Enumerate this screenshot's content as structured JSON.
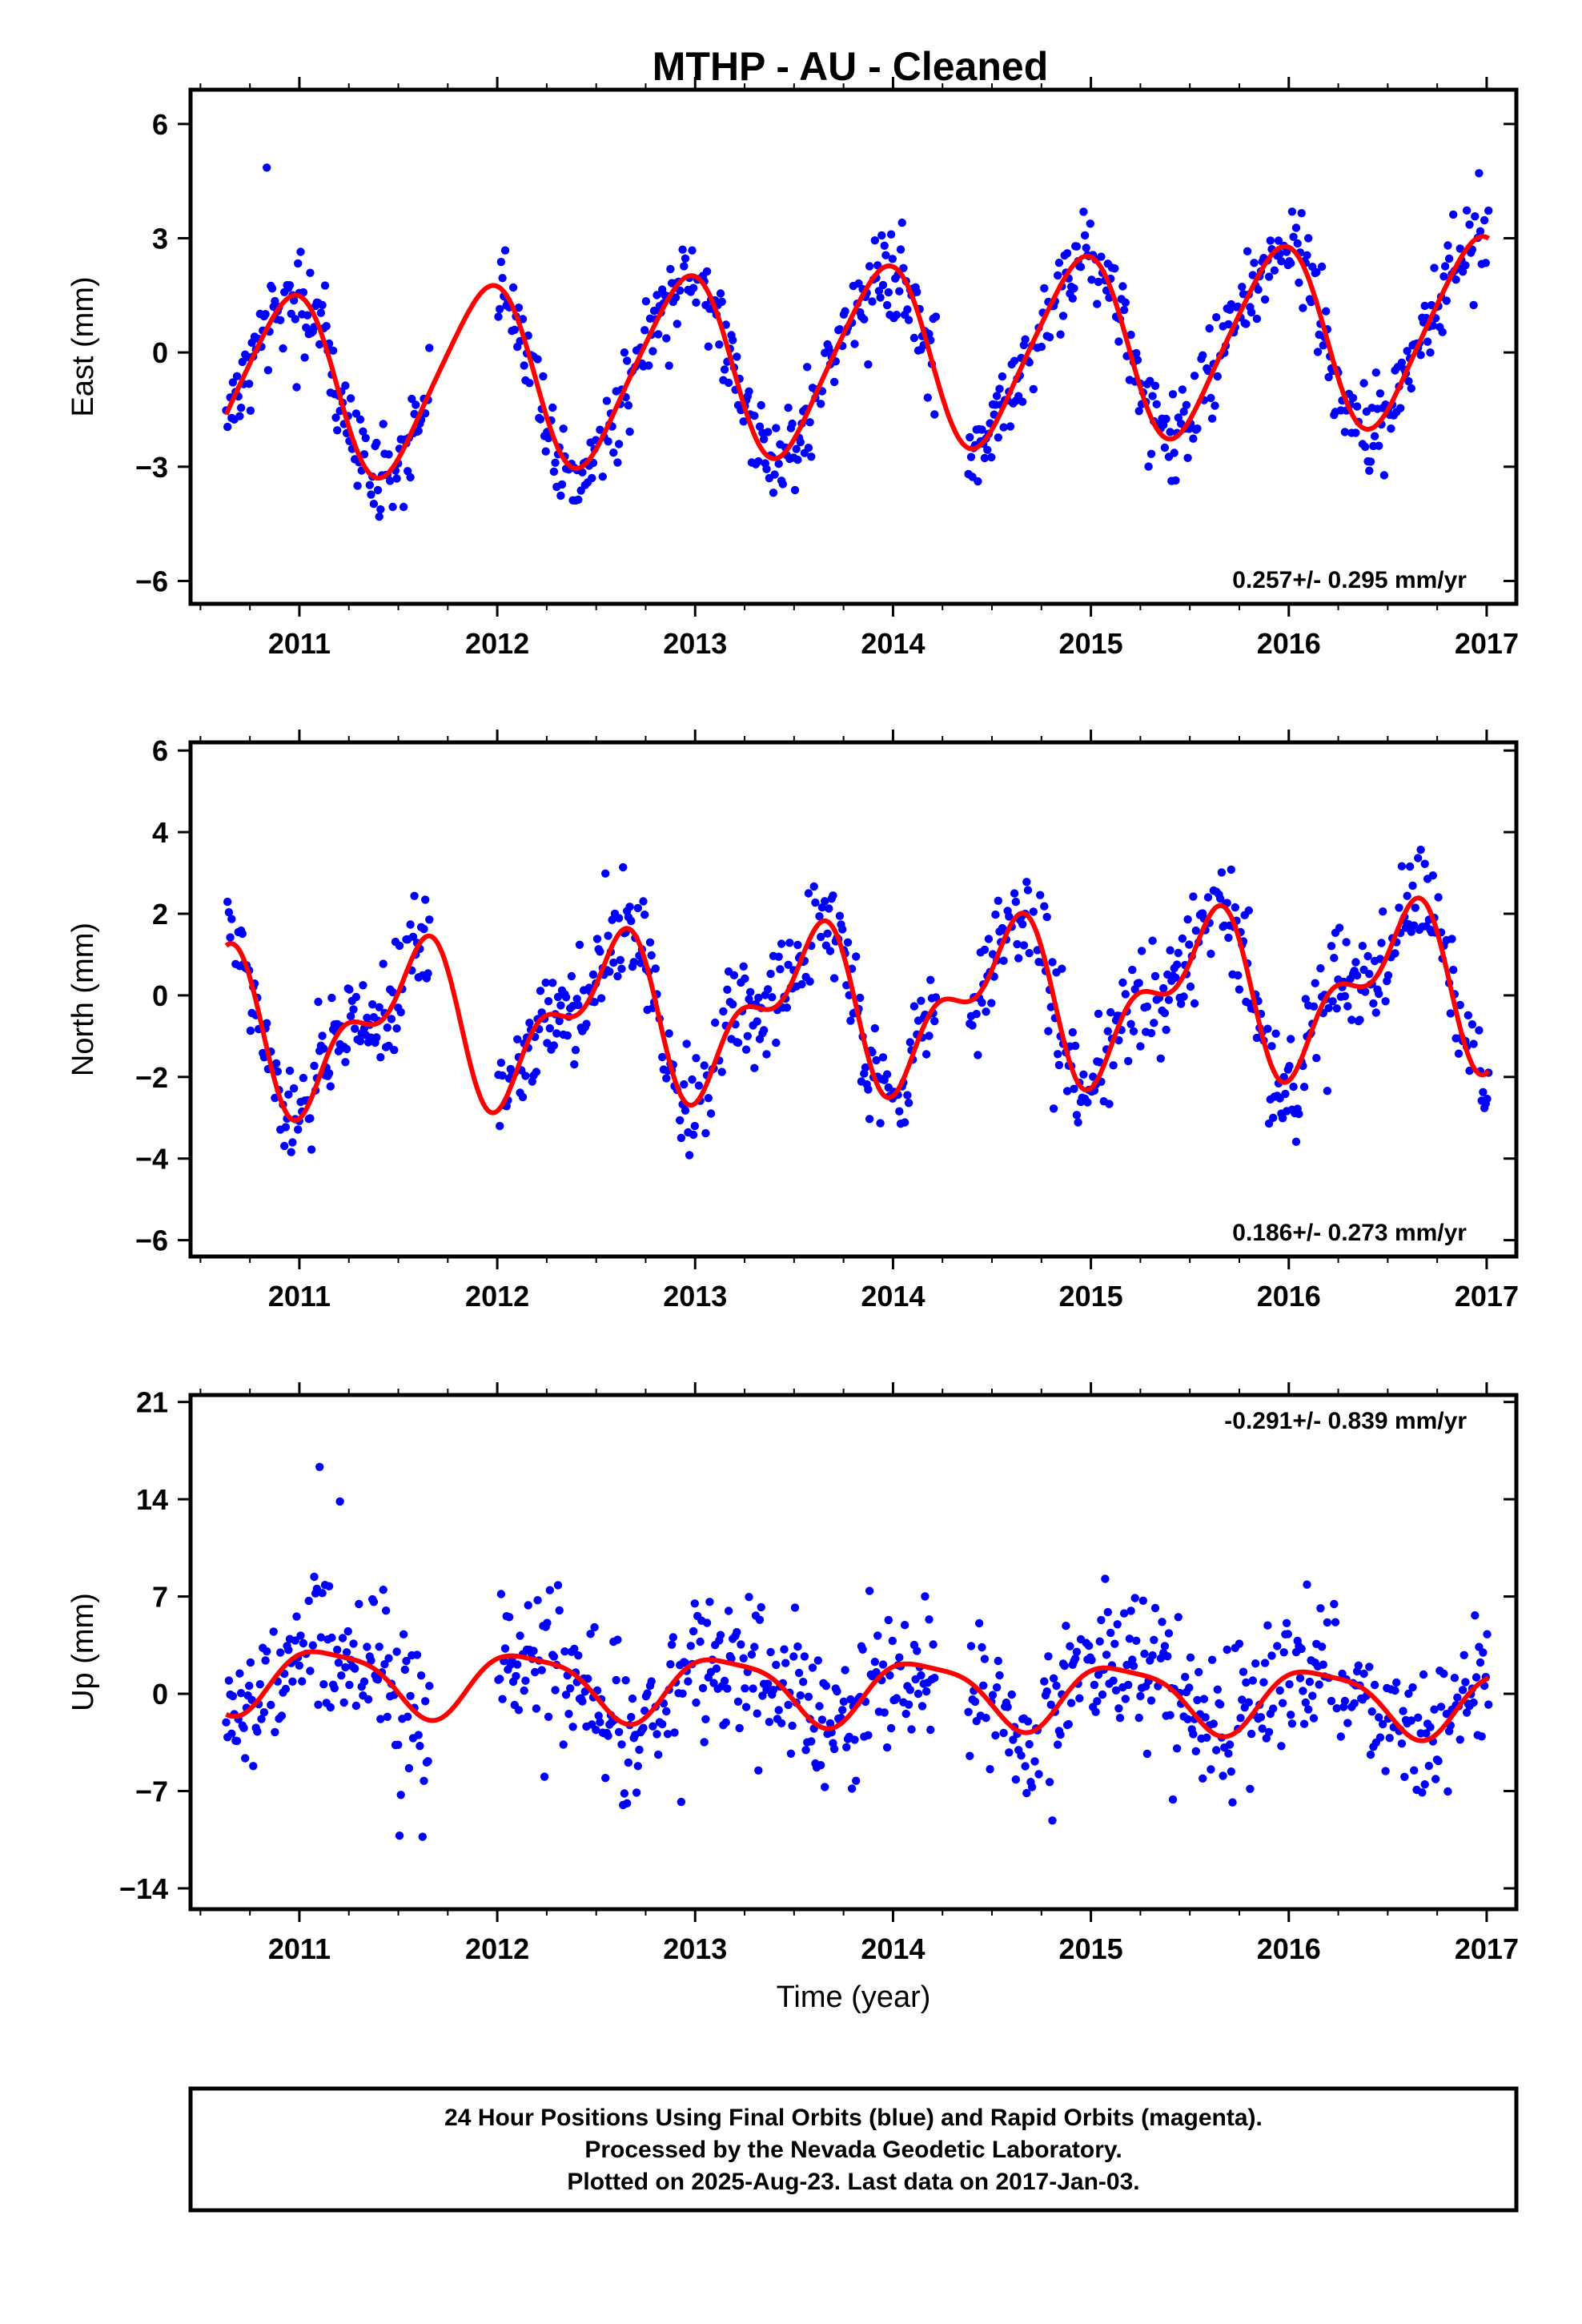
{
  "title": "MTHP  - AU - Cleaned",
  "footer": {
    "lines": [
      "24 Hour Positions Using Final Orbits (blue) and Rapid Orbits (magenta).",
      "Processed by the Nevada Geodetic Laboratory.",
      "Plotted on 2025-Aug-23. Last data on 2017-Jan-03."
    ]
  },
  "colors": {
    "points": "#0000ff",
    "fit": "#ff0000",
    "frame": "#000000"
  },
  "chart_data": [
    {
      "type": "scatter",
      "component": "East",
      "ylabel": "East (mm)",
      "xlabel": "",
      "xlim": [
        2010.45,
        2017.15
      ],
      "ylim": [
        -6.6,
        6.9
      ],
      "xticks": [
        2011,
        2012,
        2013,
        2014,
        2015,
        2016,
        2017
      ],
      "yticks": [
        -6,
        -3,
        0,
        3,
        6
      ],
      "rate_text": "0.257+/- 0.295 mm/yr",
      "rate_position": "bottom-right",
      "x_start": 2010.63,
      "x_end": 2017.01,
      "fit": {
        "offset": -0.2,
        "trend": 0.257,
        "annual_sin": -0.9,
        "annual_cos": 2.2,
        "semiannual_sin": 0.25,
        "semiannual_cos": 0.2
      },
      "scatter": 0.85,
      "gaps": [
        [
          2011.66,
          2012.0
        ],
        [
          2014.22,
          2014.38
        ]
      ],
      "series": [
        {
          "name": "Final Orbits",
          "color": "#0000ff",
          "kind": "points"
        },
        {
          "name": "Fit",
          "color": "#ff0000",
          "kind": "line"
        }
      ]
    },
    {
      "type": "scatter",
      "component": "North",
      "ylabel": "North (mm)",
      "xlabel": "",
      "xlim": [
        2010.45,
        2017.15
      ],
      "ylim": [
        -6.4,
        6.2
      ],
      "xticks": [
        2011,
        2012,
        2013,
        2014,
        2015,
        2016,
        2017
      ],
      "yticks": [
        -6,
        -4,
        -2,
        0,
        2,
        4,
        6
      ],
      "rate_text": "0.186+/- 0.273 mm/yr",
      "rate_position": "bottom-right",
      "x_start": 2010.63,
      "x_end": 2017.01,
      "fit": {
        "offset": -0.3,
        "trend": 0.186,
        "annual_sin": -0.6,
        "annual_cos": -1.5,
        "semiannual_sin": 0.6,
        "semiannual_cos": -0.7
      },
      "scatter": 0.9,
      "gaps": [
        [
          2011.66,
          2012.0
        ],
        [
          2014.22,
          2014.38
        ]
      ],
      "series": [
        {
          "name": "Final Orbits",
          "color": "#0000ff",
          "kind": "points"
        },
        {
          "name": "Fit",
          "color": "#ff0000",
          "kind": "line"
        }
      ]
    },
    {
      "type": "scatter",
      "component": "Up",
      "ylabel": "Up (mm)",
      "xlabel": "Time (year)",
      "xlim": [
        2010.45,
        2017.15
      ],
      "ylim": [
        -15.5,
        21.5
      ],
      "xticks": [
        2011,
        2012,
        2013,
        2014,
        2015,
        2016,
        2017
      ],
      "yticks": [
        -14,
        -7,
        0,
        7,
        14,
        21
      ],
      "rate_text": "-0.291+/- 0.839 mm/yr",
      "rate_position": "top-right",
      "x_start": 2010.63,
      "x_end": 2017.01,
      "fit": {
        "offset": 0.3,
        "trend": -0.291,
        "annual_sin": 1.9,
        "annual_cos": 1.3,
        "semiannual_sin": -0.4,
        "semiannual_cos": 0.4
      },
      "scatter": 3.6,
      "gaps": [
        [
          2011.66,
          2012.0
        ],
        [
          2014.22,
          2014.38
        ]
      ],
      "series": [
        {
          "name": "Final Orbits",
          "color": "#0000ff",
          "kind": "points"
        },
        {
          "name": "Fit",
          "color": "#ff0000",
          "kind": "line"
        }
      ]
    }
  ]
}
